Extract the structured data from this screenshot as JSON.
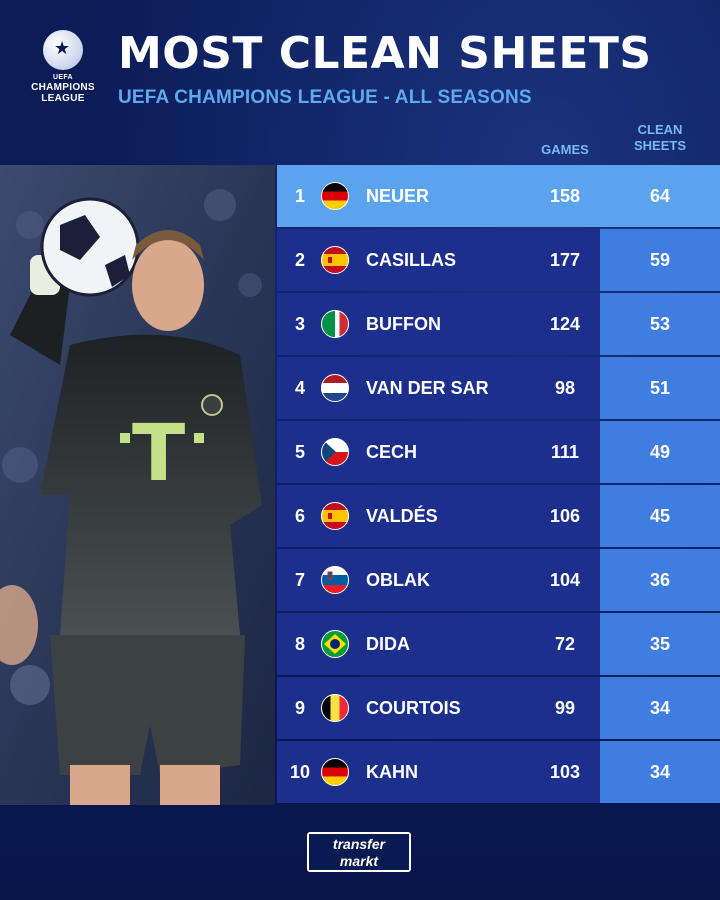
{
  "brand": {
    "logo_line1": "UEFA",
    "logo_line2": "CHAMPIONS",
    "logo_line3": "LEAGUE"
  },
  "header": {
    "title": "MOST CLEAN SHEETS",
    "subtitle": "UEFA CHAMPIONS LEAGUE - ALL SEASONS"
  },
  "columns": {
    "games": "GAMES",
    "clean_sheets_line1": "CLEAN",
    "clean_sheets_line2": "SHEETS"
  },
  "rows": [
    {
      "rank": "1",
      "name": "NEUER",
      "games": "158",
      "clean_sheets": "64",
      "flag": "germany-flag"
    },
    {
      "rank": "2",
      "name": "CASILLAS",
      "games": "177",
      "clean_sheets": "59",
      "flag": "spain-flag"
    },
    {
      "rank": "3",
      "name": "BUFFON",
      "games": "124",
      "clean_sheets": "53",
      "flag": "italy-flag"
    },
    {
      "rank": "4",
      "name": "VAN DER SAR",
      "games": "98",
      "clean_sheets": "51",
      "flag": "netherlands-flag"
    },
    {
      "rank": "5",
      "name": "CECH",
      "games": "111",
      "clean_sheets": "49",
      "flag": "czech-flag"
    },
    {
      "rank": "6",
      "name": "VALDÉS",
      "games": "106",
      "clean_sheets": "45",
      "flag": "spain-flag"
    },
    {
      "rank": "7",
      "name": "OBLAK",
      "games": "104",
      "clean_sheets": "36",
      "flag": "slovenia-flag"
    },
    {
      "rank": "8",
      "name": "DIDA",
      "games": "72",
      "clean_sheets": "35",
      "flag": "brazil-flag"
    },
    {
      "rank": "9",
      "name": "COURTOIS",
      "games": "99",
      "clean_sheets": "34",
      "flag": "belgium-flag"
    },
    {
      "rank": "10",
      "name": "KAHN",
      "games": "103",
      "clean_sheets": "34",
      "flag": "germany-flag"
    }
  ],
  "footer": {
    "logo_line1": "transfer",
    "logo_line2": "markt"
  },
  "colors": {
    "background": "#0a1a52",
    "row": "#1c2f8c",
    "row_highlight": "#5ca3ee",
    "clean_sheets_cell": "#3f7ee0",
    "accent_text": "#5fa9f0"
  }
}
